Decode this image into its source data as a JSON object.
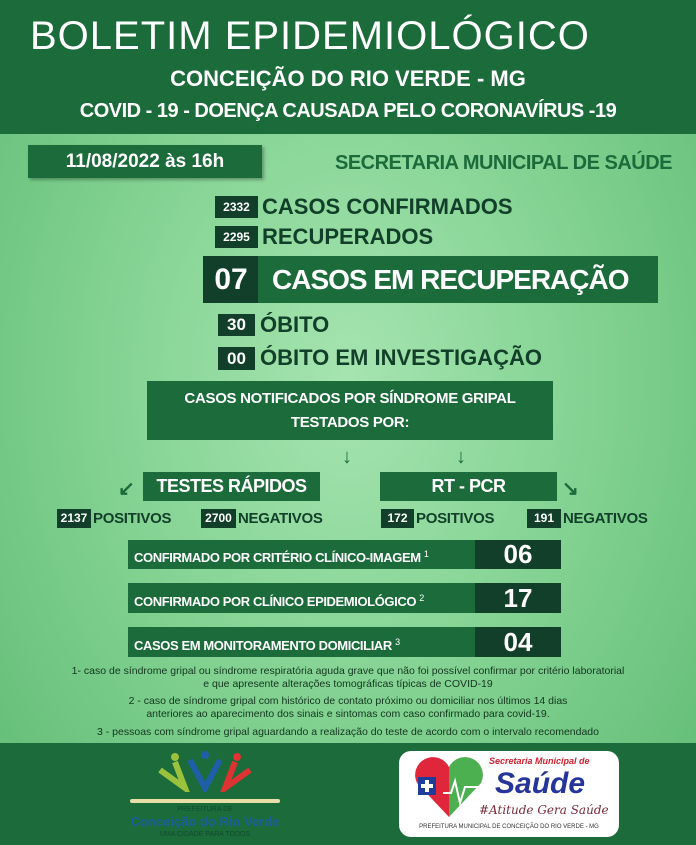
{
  "header": {
    "title": "BOLETIM EPIDEMIOLÓGICO",
    "city": "CONCEIÇÃO DO RIO VERDE - MG",
    "subtitle": "COVID - 19 -  DOENÇA CAUSADA PELO CORONAVÍRUS -19"
  },
  "date": "11/08/2022 às 16h",
  "secretaria": "SECRETARIA MUNICIPAL DE SAÚDE",
  "stats": {
    "confirmados": {
      "value": "2332",
      "label": "CASOS CONFIRMADOS"
    },
    "recuperados": {
      "value": "2295",
      "label": "RECUPERADOS"
    },
    "em_recuperacao": {
      "value": "07",
      "label": "CASOS EM RECUPERAÇÃO"
    },
    "obito": {
      "value": "30",
      "label": "ÓBITO"
    },
    "obito_investigacao": {
      "value": "00",
      "label": "ÓBITO EM INVESTIGAÇÃO"
    }
  },
  "notificados": {
    "line1": "CASOS NOTIFICADOS POR SÍNDROME GRIPAL",
    "line2": "TESTADOS POR:"
  },
  "testes_rapidos": {
    "title": "TESTES RÁPIDOS",
    "positivos": "2137",
    "positivos_label": "POSITIVOS",
    "negativos": "2700",
    "negativos_label": "NEGATIVOS"
  },
  "rt_pcr": {
    "title": "RT - PCR",
    "positivos": "172",
    "positivos_label": "POSITIVOS",
    "negativos": "191",
    "negativos_label": "NEGATIVOS"
  },
  "confirmacoes": [
    {
      "label": "CONFIRMADO POR CRITÉRIO CLÍNICO-IMAGEM",
      "sup": "1",
      "value": "06"
    },
    {
      "label": "CONFIRMADO POR CLÍNICO EPIDEMIOLÓGICO",
      "sup": "2",
      "value": "17"
    },
    {
      "label": "CASOS EM MONITORAMENTO DOMICILIAR",
      "sup": "3",
      "value": "04"
    }
  ],
  "footnotes": [
    {
      "line1": "1- caso de síndrome gripal ou síndrome respiratória aguda grave que não foi possível confirmar por critério laboratorial",
      "line2": "e que apresente alterações tomográficas típicas de COVID-19"
    },
    {
      "line1": "2 - caso de síndrome gripal com histórico de contato próximo ou domiciliar nos últimos 14 dias",
      "line2": "anteriores ao aparecimento dos sinais e sintomas com caso confirmado para covid-19."
    },
    {
      "line1": "3 - pessoas com síndrome gripal aguardando a realização do teste de acordo com o intervalo recomendado"
    }
  ],
  "logo_prefeitura": {
    "small": "PREFEITURA DE",
    "name": "Conceição do Rio Verde",
    "tagline": "UMA CIDADE PARA TODOS"
  },
  "logo_saude": {
    "top": "Secretaria Municipal de",
    "name": "Saúde",
    "slogan": "#Atitude Gera Saúde",
    "bottom": "PREFEITURA MUNICIPAL DE CONCEIÇÃO DO RIO VERDE - MG",
    "badge": "SUS"
  },
  "colors": {
    "dark_green": "#1c6b3b",
    "darker_green": "#123f29",
    "light_green": "#86d495"
  }
}
